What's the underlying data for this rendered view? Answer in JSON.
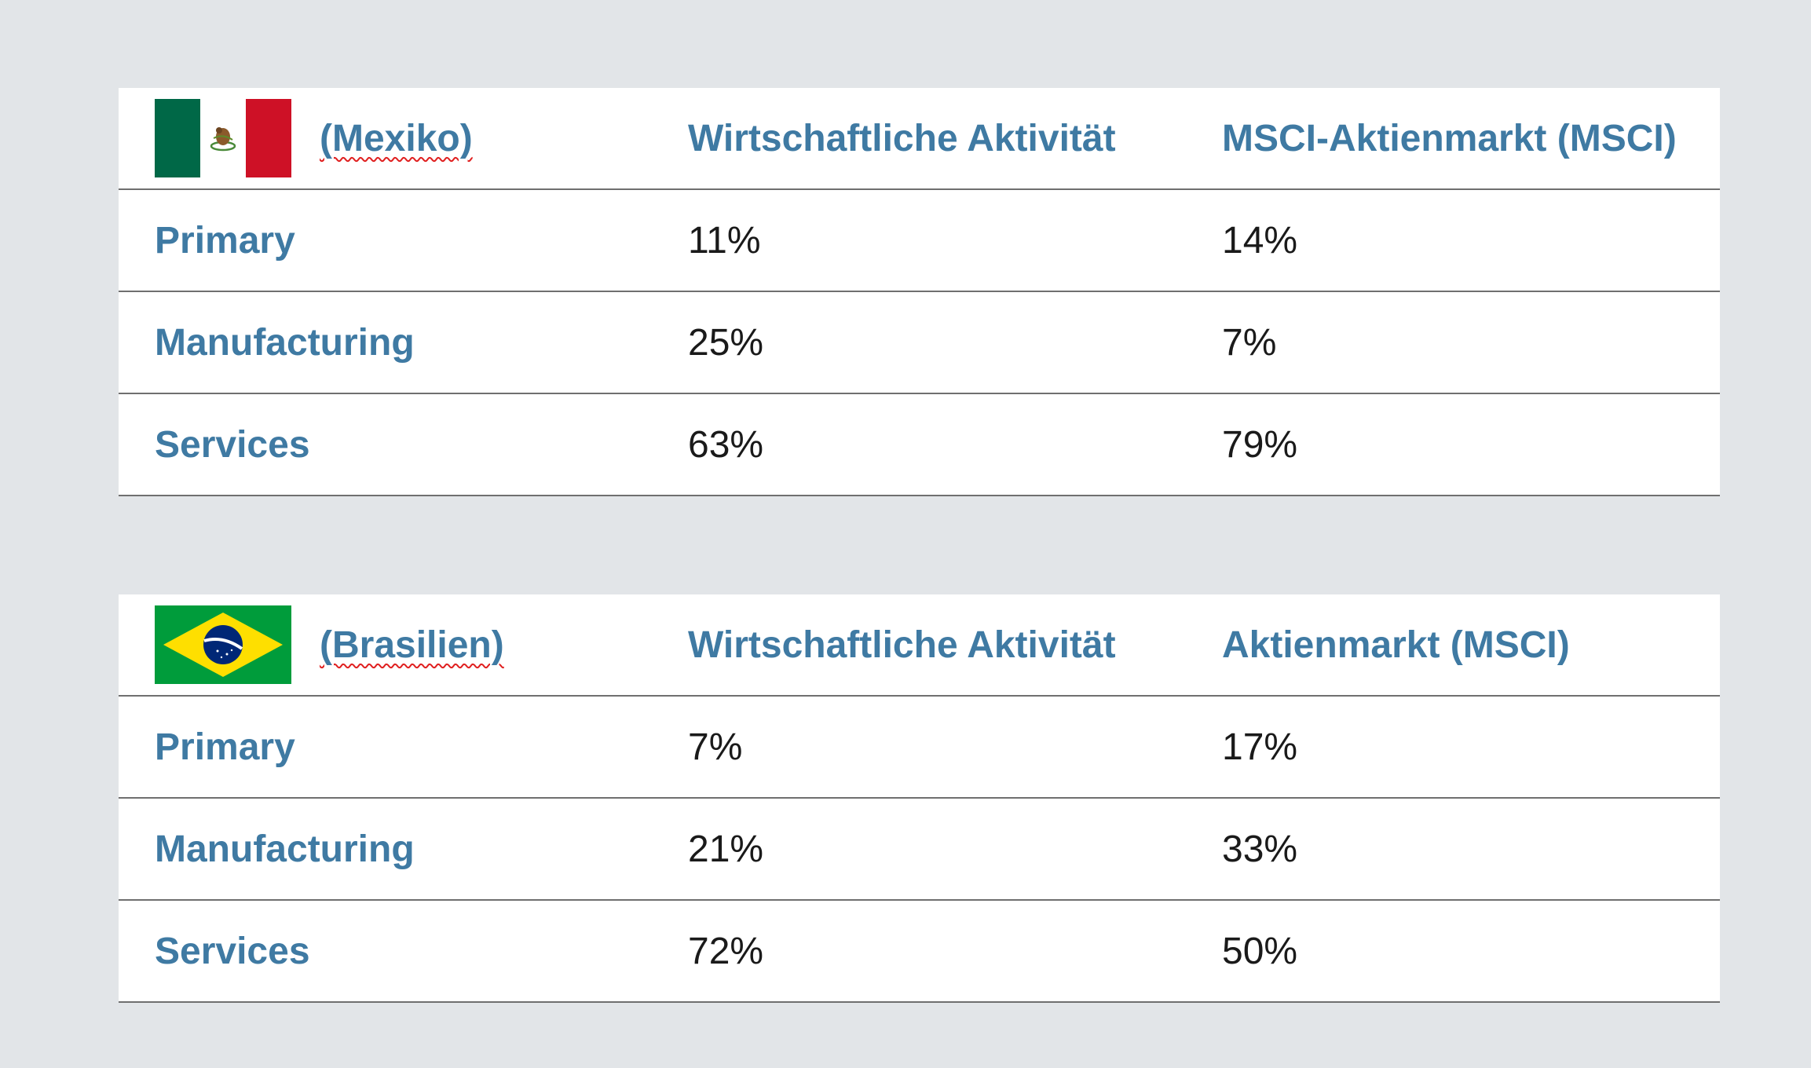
{
  "tables": [
    {
      "country": "(Mexiko)",
      "flag": "mexico-flag-icon",
      "col2_header": "Wirtschaftliche Aktivität",
      "col3_header": "MSCI-Aktienmarkt (MSCI)",
      "rows": [
        {
          "label": "Primary",
          "activity": "11%",
          "market": "14%"
        },
        {
          "label": "Manufacturing",
          "activity": "25%",
          "market": "7%"
        },
        {
          "label": "Services",
          "activity": "63%",
          "market": "79%"
        }
      ]
    },
    {
      "country": "(Brasilien)",
      "flag": "brazil-flag-icon",
      "col2_header": "Wirtschaftliche Aktivität",
      "col3_header": "Aktienmarkt (MSCI)",
      "rows": [
        {
          "label": "Primary",
          "activity": "7%",
          "market": "17%"
        },
        {
          "label": "Manufacturing",
          "activity": "21%",
          "market": "33%"
        },
        {
          "label": "Services",
          "activity": "72%",
          "market": "50%"
        }
      ]
    }
  ],
  "colors": {
    "background": "#e2e5e8",
    "header_text": "#3f7aa3",
    "value_text": "#1a1a1a",
    "row_border": "#6f6f6f"
  }
}
